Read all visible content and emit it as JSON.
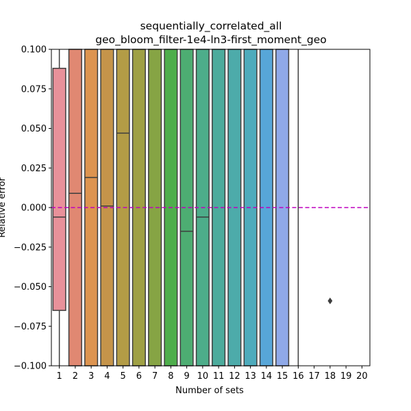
{
  "chart_data": {
    "type": "box",
    "title_lines": [
      "sequentially_correlated_all",
      "geo_bloom_filter-1e4-ln3-first_moment_geo"
    ],
    "xlabel": "Number of sets",
    "ylabel": "Relative error",
    "ylim": [
      -0.1,
      0.1
    ],
    "yticks": [
      -0.1,
      -0.075,
      -0.05,
      -0.025,
      0.0,
      0.025,
      0.05,
      0.075,
      0.1
    ],
    "ytick_labels": [
      "−0.100",
      "−0.075",
      "−0.050",
      "−0.025",
      "0.000",
      "0.025",
      "0.050",
      "0.075",
      "0.100"
    ],
    "categories": [
      "1",
      "2",
      "3",
      "4",
      "5",
      "6",
      "7",
      "8",
      "9",
      "10",
      "11",
      "12",
      "13",
      "14",
      "15",
      "16",
      "17",
      "18",
      "19",
      "20"
    ],
    "reference_line": {
      "y": 0.0,
      "color": "#bf00bf",
      "style": "dashed"
    },
    "grid": false,
    "boxes": [
      {
        "x": "1",
        "q1": -0.065,
        "median": -0.006,
        "q3": 0.088,
        "whisker_low": -0.1,
        "whisker_high": 0.1,
        "color": "#e8919a"
      },
      {
        "x": "2",
        "q1": -0.1,
        "median": 0.009,
        "q3": 0.1,
        "color": "#e08872"
      },
      {
        "x": "3",
        "q1": -0.1,
        "median": 0.019,
        "q3": 0.1,
        "color": "#dd9450"
      },
      {
        "x": "4",
        "q1": -0.1,
        "median": 0.001,
        "q3": 0.1,
        "color": "#c5944a"
      },
      {
        "x": "5",
        "q1": -0.1,
        "median": 0.047,
        "q3": 0.1,
        "color": "#b39c46"
      },
      {
        "x": "6",
        "q1": -0.1,
        "median": null,
        "q3": 0.1,
        "color": "#9fa044"
      },
      {
        "x": "7",
        "q1": -0.1,
        "median": null,
        "q3": 0.1,
        "color": "#86a444"
      },
      {
        "x": "8",
        "q1": -0.1,
        "median": null,
        "q3": 0.1,
        "color": "#4eae4c"
      },
      {
        "x": "9",
        "q1": -0.1,
        "median": -0.015,
        "q3": 0.1,
        "color": "#4dad72"
      },
      {
        "x": "10",
        "q1": -0.1,
        "median": -0.006,
        "q3": 0.1,
        "color": "#4dad8a"
      },
      {
        "x": "11",
        "q1": -0.1,
        "median": null,
        "q3": 0.1,
        "color": "#4cab9c"
      },
      {
        "x": "12",
        "q1": -0.1,
        "median": null,
        "q3": 0.1,
        "color": "#4dabaa"
      },
      {
        "x": "13",
        "q1": -0.1,
        "median": null,
        "q3": 0.1,
        "color": "#4eabbc"
      },
      {
        "x": "14",
        "q1": -0.1,
        "median": null,
        "q3": 0.1,
        "color": "#57a6d8"
      },
      {
        "x": "15",
        "q1": -0.1,
        "median": null,
        "q3": 0.1,
        "color": "#8fa9e8"
      },
      {
        "x": "16",
        "q1": null,
        "median": null,
        "q3": null,
        "whisker_low": -0.1,
        "whisker_high": 0.1,
        "color": "#b09fe8"
      },
      {
        "x": "17",
        "q1": null,
        "median": null,
        "q3": null,
        "color": "#c99ae6"
      },
      {
        "x": "18",
        "q1": null,
        "median": null,
        "q3": null,
        "color": "#e58ee0",
        "outliers": [
          -0.059
        ]
      },
      {
        "x": "19",
        "q1": null,
        "median": null,
        "q3": null,
        "color": "#e891c4"
      },
      {
        "x": "20",
        "q1": null,
        "median": null,
        "q3": null,
        "color": "#e994b2"
      }
    ]
  }
}
